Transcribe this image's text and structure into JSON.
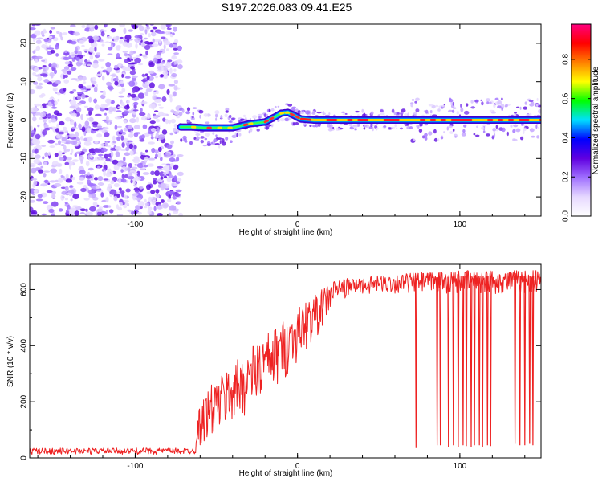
{
  "title": "S197.2026.083.09.41.E25",
  "chart_data": [
    {
      "type": "heatmap",
      "name": "spectrogram",
      "title": "S197.2026.083.09.41.E25",
      "xlabel": "Height of straight line (km)",
      "ylabel": "Frequency (Hz)",
      "xlim": [
        -165,
        150
      ],
      "ylim": [
        -25,
        25
      ],
      "xticks": [
        -100,
        0,
        100
      ],
      "xtick_labels": [
        "-100",
        "0",
        "100"
      ],
      "yticks": [
        -20,
        -10,
        0,
        10,
        20
      ],
      "ytick_labels": [
        "-20",
        "-10",
        "0",
        "10",
        "20"
      ],
      "noise_region_x": [
        -165,
        -72
      ],
      "signal_start_x": -72,
      "ridge": {
        "x": [
          -72,
          -65,
          -58,
          -50,
          -40,
          -30,
          -20,
          -14,
          -10,
          -6,
          -2,
          2,
          10,
          20,
          40,
          60,
          80,
          100,
          120,
          150
        ],
        "y": [
          -1.8,
          -1.8,
          -2.0,
          -2.0,
          -2.0,
          -1.0,
          -0.5,
          0.8,
          1.8,
          2.0,
          1.2,
          0.3,
          0.0,
          0.0,
          0.0,
          0.0,
          0.0,
          0.0,
          0.0,
          0.0
        ]
      },
      "colorbar": {
        "label": "Normalized spectral amplitude",
        "ticks": [
          0.0,
          0.2,
          0.4,
          0.6,
          0.8
        ],
        "tick_labels": [
          "0.0",
          "0.2",
          "0.4",
          "0.6",
          "0.8"
        ],
        "range": [
          0,
          0.98
        ],
        "colors": [
          "#ffffff",
          "#e6d8ff",
          "#a070ff",
          "#6000e0",
          "#0000ff",
          "#00e0ff",
          "#00ff00",
          "#ffff00",
          "#ff8000",
          "#ff0000",
          "#ff0080"
        ]
      }
    },
    {
      "type": "line",
      "name": "snr",
      "xlabel": "Height of straight line (km)",
      "ylabel": "SNR (10 * v/v)",
      "xlim": [
        -165,
        150
      ],
      "ylim": [
        0,
        690
      ],
      "xticks": [
        -100,
        0,
        100
      ],
      "xtick_labels": [
        "-100",
        "0",
        "100"
      ],
      "yticks": [
        0,
        200,
        400,
        600
      ],
      "ytick_labels": [
        "0",
        "200",
        "400",
        "600"
      ],
      "color": "#ee2222",
      "envelope": {
        "x": [
          -165,
          -63,
          -62,
          -55,
          -45,
          -35,
          -25,
          -15,
          -5,
          5,
          15,
          20,
          25,
          35,
          50,
          70,
          90,
          110,
          130,
          150
        ],
        "lo": [
          12,
          12,
          30,
          60,
          90,
          140,
          170,
          230,
          300,
          380,
          450,
          520,
          560,
          580,
          585,
          585,
          585,
          585,
          585,
          585
        ],
        "hi": [
          35,
          35,
          160,
          250,
          310,
          360,
          420,
          460,
          510,
          560,
          600,
          630,
          640,
          640,
          650,
          660,
          665,
          670,
          670,
          670
        ]
      },
      "dropouts_x": [
        73,
        86,
        88,
        93,
        96,
        99,
        102,
        104,
        107,
        109,
        112,
        114,
        117,
        119,
        134,
        137,
        140,
        143,
        145
      ],
      "dropouts_y": [
        35,
        45,
        45,
        40,
        45,
        40,
        45,
        42,
        40,
        45,
        45,
        40,
        45,
        42,
        50,
        45,
        45,
        50,
        45
      ]
    }
  ]
}
